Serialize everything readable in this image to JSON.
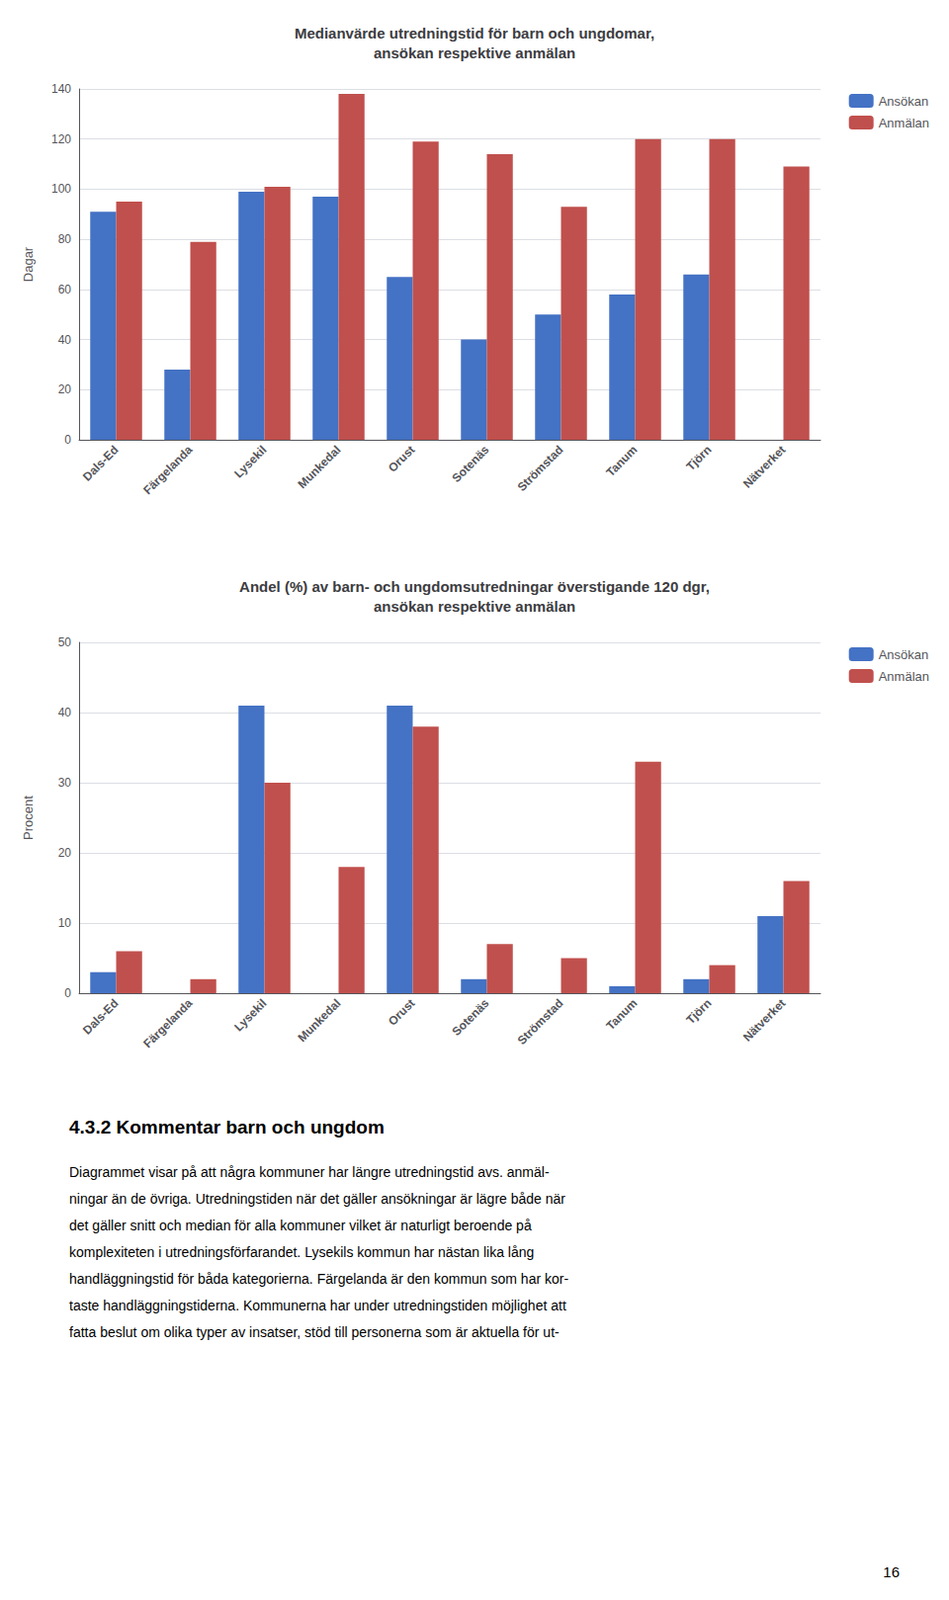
{
  "chart_data": [
    {
      "type": "bar",
      "title": "Medianvärde utredningstid för barn och ungdomar,\nansökan respektive anmälan",
      "ylabel": "Dagar",
      "categories": [
        "Dals-Ed",
        "Färgelanda",
        "Lysekil",
        "Munkedal",
        "Orust",
        "Sotenäs",
        "Strömstad",
        "Tanum",
        "Tjörn",
        "Nätverket"
      ],
      "series": [
        {
          "name": "Ansökan",
          "color": "#4472C4",
          "values": [
            91,
            28,
            99,
            97,
            65,
            40,
            50,
            58,
            66,
            0
          ]
        },
        {
          "name": "Anmälan",
          "color": "#C0504D",
          "values": [
            95,
            79,
            101,
            138,
            119,
            114,
            93,
            120,
            120,
            109
          ]
        }
      ],
      "ylim": [
        0,
        140
      ],
      "yticks": [
        0,
        20,
        40,
        60,
        80,
        100,
        120,
        140
      ],
      "grid": true,
      "legend": "right"
    },
    {
      "type": "bar",
      "title": "Andel (%) av barn- och ungdomsutredningar överstigande 120 dgr,\nansökan respektive anmälan",
      "ylabel": "Procent",
      "categories": [
        "Dals-Ed",
        "Färgelanda",
        "Lysekil",
        "Munkedal",
        "Orust",
        "Sotenäs",
        "Strömstad",
        "Tanum",
        "Tjörn",
        "Nätverket"
      ],
      "series": [
        {
          "name": "Ansökan",
          "color": "#4472C4",
          "values": [
            3,
            0,
            41,
            0,
            41,
            2,
            0,
            1,
            2,
            11
          ]
        },
        {
          "name": "Anmälan",
          "color": "#C0504D",
          "values": [
            6,
            2,
            30,
            18,
            38,
            7,
            5,
            33,
            4,
            16
          ]
        }
      ],
      "ylim": [
        0,
        50
      ],
      "yticks": [
        0,
        10,
        20,
        30,
        40,
        50
      ],
      "grid": true,
      "legend": "right"
    }
  ],
  "text_block": {
    "heading": "4.3.2 Kommentar barn och ungdom",
    "lines": [
      "Diagrammet visar på att några kommuner har längre utredningstid avs. anmäl-",
      "ningar än de övriga. Utredningstiden när det gäller ansökningar är lägre både när",
      "det gäller snitt och median för alla kommuner vilket är naturligt beroende på",
      "komplexiteten i utredningsförfarandet. Lysekils kommun har nästan lika lång",
      "handläggningstid för båda kategorierna. Färgelanda är den kommun som har kor-",
      "taste handläggningstiderna. Kommunerna har under utredningstiden möjlighet att",
      "fatta beslut om olika typer av insatser, stöd till personerna som är aktuella för ut-"
    ]
  },
  "page_number": "16"
}
